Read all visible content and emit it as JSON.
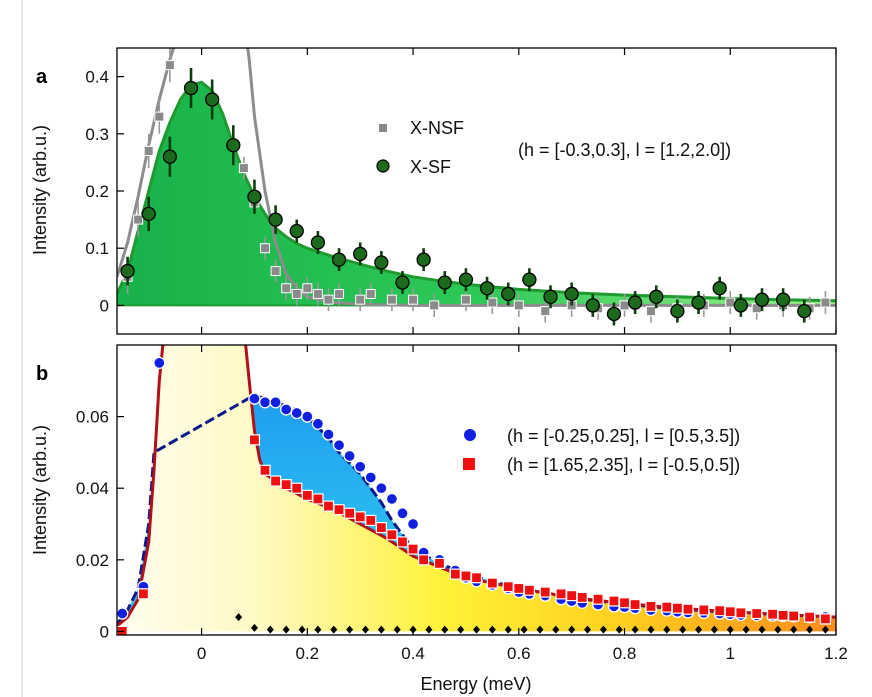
{
  "chart_data": [
    {
      "panel": "a",
      "type": "scatter",
      "ylabel": "Intensity (arb.u.)",
      "xlabel": "",
      "xlim": [
        -0.16,
        1.2
      ],
      "ylim": [
        -0.05,
        0.45
      ],
      "yticks": [
        0,
        0.1,
        0.2,
        0.3,
        0.4
      ],
      "ytick_labels": [
        "0",
        "0.1",
        "0.2",
        "0.3",
        "0.4"
      ],
      "xticks": [
        0,
        0.2,
        0.4,
        0.6,
        0.8,
        1.0,
        1.2
      ],
      "annotation": "(h = [-0.3,0.3], l = [1.2,2.0])",
      "colors": {
        "sf": "#1c6b1c",
        "sf_fit": "#1f9a2f",
        "sf_fill": "#22c04a",
        "nsf": "#888888"
      },
      "series": [
        {
          "name": "X-NSF",
          "marker": "square",
          "x": [
            -0.14,
            -0.12,
            -0.1,
            -0.08,
            -0.06,
            0.06,
            0.08,
            0.1,
            0.12,
            0.14,
            0.16,
            0.18,
            0.2,
            0.22,
            0.24,
            0.26,
            0.3,
            0.32,
            0.36,
            0.4,
            0.44,
            0.5,
            0.55,
            0.6,
            0.65,
            0.7,
            0.75,
            0.8,
            0.85,
            0.9,
            0.95,
            1.0,
            1.05,
            1.1,
            1.15,
            1.18
          ],
          "y": [
            0.05,
            0.15,
            0.27,
            0.33,
            0.42,
            0.28,
            0.24,
            0.18,
            0.1,
            0.06,
            0.03,
            0.02,
            0.03,
            0.02,
            0.01,
            0.02,
            0.01,
            0.02,
            0.01,
            0.01,
            0.0,
            0.01,
            0.005,
            0.0,
            -0.01,
            0.0,
            -0.005,
            0.0,
            -0.01,
            -0.005,
            0.0,
            0.005,
            -0.005,
            0.0,
            -0.005,
            0.005
          ],
          "err": [
            0.03,
            0.03,
            0.03,
            0.03,
            0.03,
            0.03,
            0.02,
            0.02,
            0.02,
            0.02,
            0.02,
            0.02,
            0.02,
            0.02,
            0.02,
            0.02,
            0.02,
            0.02,
            0.02,
            0.02,
            0.02,
            0.02,
            0.02,
            0.02,
            0.02,
            0.02,
            0.02,
            0.02,
            0.02,
            0.02,
            0.02,
            0.02,
            0.02,
            0.02,
            0.02,
            0.02
          ]
        },
        {
          "name": "X-SF",
          "marker": "circle",
          "x": [
            -0.14,
            -0.1,
            -0.06,
            -0.02,
            0.02,
            0.06,
            0.1,
            0.14,
            0.18,
            0.22,
            0.26,
            0.3,
            0.34,
            0.38,
            0.42,
            0.46,
            0.5,
            0.54,
            0.58,
            0.62,
            0.66,
            0.7,
            0.74,
            0.78,
            0.82,
            0.86,
            0.9,
            0.94,
            0.98,
            1.02,
            1.06,
            1.1,
            1.14
          ],
          "y": [
            0.06,
            0.16,
            0.26,
            0.38,
            0.36,
            0.28,
            0.19,
            0.15,
            0.13,
            0.11,
            0.08,
            0.09,
            0.075,
            0.04,
            0.08,
            0.04,
            0.045,
            0.03,
            0.02,
            0.045,
            0.015,
            0.02,
            0.0,
            -0.015,
            0.005,
            0.015,
            -0.01,
            0.005,
            0.03,
            0.0,
            0.01,
            0.01,
            -0.01
          ],
          "err": [
            0.025,
            0.03,
            0.035,
            0.035,
            0.035,
            0.035,
            0.03,
            0.025,
            0.02,
            0.02,
            0.02,
            0.02,
            0.02,
            0.02,
            0.02,
            0.02,
            0.02,
            0.02,
            0.02,
            0.02,
            0.02,
            0.02,
            0.02,
            0.02,
            0.02,
            0.02,
            0.02,
            0.02,
            0.02,
            0.02,
            0.02,
            0.02,
            0.02
          ]
        }
      ],
      "fits": [
        {
          "for": "X-SF",
          "x": [
            -0.16,
            -0.14,
            -0.12,
            -0.1,
            -0.08,
            -0.06,
            -0.04,
            -0.02,
            0.0,
            0.02,
            0.04,
            0.06,
            0.08,
            0.1,
            0.12,
            0.14,
            0.16,
            0.18,
            0.2,
            0.25,
            0.3,
            0.35,
            0.4,
            0.45,
            0.5,
            0.6,
            0.7,
            0.8,
            0.9,
            1.0,
            1.1,
            1.2
          ],
          "y": [
            0.02,
            0.06,
            0.13,
            0.2,
            0.27,
            0.32,
            0.36,
            0.385,
            0.39,
            0.375,
            0.335,
            0.28,
            0.23,
            0.19,
            0.16,
            0.135,
            0.12,
            0.108,
            0.1,
            0.085,
            0.072,
            0.06,
            0.05,
            0.043,
            0.037,
            0.028,
            0.022,
            0.018,
            0.015,
            0.012,
            0.01,
            0.008
          ]
        },
        {
          "for": "X-NSF",
          "x": [
            -0.16,
            -0.14,
            -0.12,
            -0.1,
            -0.08,
            -0.06,
            -0.05,
            -0.04,
            0.08,
            0.09,
            0.1,
            0.12,
            0.14,
            0.16,
            0.18,
            0.2,
            0.25,
            0.3,
            0.4,
            0.6,
            0.8,
            1.0,
            1.2
          ],
          "y": [
            0.05,
            0.11,
            0.19,
            0.28,
            0.36,
            0.43,
            0.46,
            0.5,
            0.5,
            0.43,
            0.33,
            0.2,
            0.11,
            0.055,
            0.03,
            0.015,
            0.005,
            0.002,
            0.0,
            0.0,
            0.0,
            0.0,
            0.0
          ]
        }
      ]
    },
    {
      "panel": "b",
      "type": "scatter",
      "ylabel": "Intensity (arb.u.)",
      "xlabel": "Energy (meV)",
      "xlim": [
        -0.16,
        1.2
      ],
      "ylim": [
        -0.001,
        0.08
      ],
      "yticks": [
        0,
        0.02,
        0.04,
        0.06
      ],
      "ytick_labels": [
        "0",
        "0.02",
        "0.04",
        "0.06"
      ],
      "xticks": [
        0,
        0.2,
        0.4,
        0.6,
        0.8,
        1.0,
        1.2
      ],
      "xtick_labels": [
        "0",
        "0.2",
        "0.4",
        "0.6",
        "0.8",
        "1",
        "1.2"
      ],
      "colors": {
        "blue": "#1020e0",
        "red": "#ee1010",
        "fit_blue": "#0a1a8a",
        "fit_red": "#b0101a",
        "diamond": "#000000"
      },
      "series": [
        {
          "name": "(h = [-0.25,0.25], l = [0.5,3.5])",
          "marker": "circle",
          "x": [
            -0.15,
            -0.11,
            -0.08,
            0.1,
            0.12,
            0.14,
            0.16,
            0.18,
            0.2,
            0.22,
            0.24,
            0.26,
            0.28,
            0.3,
            0.32,
            0.34,
            0.36,
            0.38,
            0.4,
            0.42,
            0.45,
            0.48,
            0.5,
            0.52,
            0.55,
            0.58,
            0.6,
            0.62,
            0.65,
            0.68,
            0.7,
            0.72,
            0.75,
            0.78,
            0.8,
            0.82,
            0.85,
            0.88,
            0.9,
            0.92,
            0.95,
            0.98,
            1.0,
            1.02,
            1.05,
            1.08,
            1.1,
            1.12,
            1.15,
            1.18
          ],
          "y": [
            0.005,
            0.0125,
            0.075,
            0.065,
            0.064,
            0.064,
            0.062,
            0.061,
            0.06,
            0.058,
            0.055,
            0.052,
            0.049,
            0.046,
            0.043,
            0.04,
            0.037,
            0.033,
            0.03,
            0.022,
            0.02,
            0.017,
            0.015,
            0.014,
            0.013,
            0.012,
            0.011,
            0.0105,
            0.01,
            0.009,
            0.0085,
            0.008,
            0.0075,
            0.007,
            0.0068,
            0.0065,
            0.006,
            0.0058,
            0.0055,
            0.0053,
            0.0052,
            0.005,
            0.0048,
            0.0046,
            0.0045,
            0.0044,
            0.0043,
            0.0042,
            0.004,
            0.004
          ]
        },
        {
          "name": "(h = [1.65,2.35], l = [-0.5,0.5])",
          "marker": "square",
          "x": [
            -0.15,
            -0.11,
            0.1,
            0.12,
            0.14,
            0.16,
            0.18,
            0.2,
            0.22,
            0.24,
            0.26,
            0.28,
            0.3,
            0.32,
            0.34,
            0.36,
            0.38,
            0.4,
            0.42,
            0.45,
            0.48,
            0.5,
            0.52,
            0.55,
            0.58,
            0.6,
            0.62,
            0.65,
            0.68,
            0.7,
            0.72,
            0.75,
            0.78,
            0.8,
            0.82,
            0.85,
            0.88,
            0.9,
            0.92,
            0.95,
            0.98,
            1.0,
            1.02,
            1.05,
            1.08,
            1.1,
            1.12,
            1.15,
            1.18
          ],
          "y": [
            0.0,
            0.0105,
            0.0535,
            0.045,
            0.042,
            0.041,
            0.04,
            0.038,
            0.037,
            0.035,
            0.034,
            0.033,
            0.032,
            0.031,
            0.029,
            0.027,
            0.025,
            0.023,
            0.02,
            0.019,
            0.016,
            0.0155,
            0.015,
            0.0135,
            0.0125,
            0.012,
            0.0115,
            0.011,
            0.0105,
            0.01,
            0.0095,
            0.009,
            0.0085,
            0.008,
            0.0075,
            0.007,
            0.0068,
            0.0065,
            0.0062,
            0.006,
            0.0058,
            0.0055,
            0.0052,
            0.005,
            0.0048,
            0.0045,
            0.0043,
            0.004,
            0.0035
          ]
        },
        {
          "name": "",
          "marker": "diamond",
          "x": [
            0.07,
            0.1,
            0.13,
            0.16,
            0.19,
            0.22,
            0.25,
            0.28,
            0.31,
            0.34,
            0.37,
            0.4,
            0.43,
            0.46,
            0.49,
            0.52,
            0.55,
            0.58,
            0.61,
            0.64,
            0.67,
            0.7,
            0.73,
            0.76,
            0.79,
            0.82,
            0.85,
            0.88,
            0.91,
            0.94,
            0.97,
            1.0,
            1.03,
            1.06,
            1.09,
            1.12,
            1.15,
            1.18
          ],
          "y": [
            0.004,
            0.001,
            0.0005,
            0.0005,
            0.0005,
            0.0005,
            0.0005,
            0.0005,
            0.0005,
            0.0005,
            0.0005,
            0.0005,
            0.0005,
            0.0005,
            0.0005,
            0.0005,
            0.0005,
            0.0005,
            0.0005,
            0.0005,
            0.0005,
            0.0005,
            0.0005,
            0.0005,
            0.0005,
            0.0005,
            0.0005,
            0.0005,
            0.0005,
            0.0005,
            0.0005,
            0.0005,
            0.0005,
            0.0005,
            0.0005,
            0.0005,
            0.0005,
            0.0005
          ]
        }
      ],
      "fits": [
        {
          "for": "red",
          "x": [
            -0.16,
            -0.14,
            -0.12,
            -0.1,
            -0.09,
            -0.08,
            -0.07,
            0.08,
            0.09,
            0.1,
            0.11,
            0.12,
            0.14,
            0.16,
            0.2,
            0.25,
            0.3,
            0.35,
            0.4,
            0.45,
            0.5,
            0.6,
            0.7,
            0.8,
            0.9,
            1.0,
            1.1,
            1.2
          ],
          "y": [
            0.0015,
            0.004,
            0.009,
            0.025,
            0.045,
            0.07,
            0.085,
            0.085,
            0.07,
            0.056,
            0.048,
            0.044,
            0.042,
            0.04,
            0.037,
            0.034,
            0.03,
            0.026,
            0.021,
            0.018,
            0.015,
            0.012,
            0.0095,
            0.0078,
            0.0065,
            0.0055,
            0.0047,
            0.004
          ]
        },
        {
          "for": "blue",
          "x": [
            -0.16,
            -0.14,
            -0.12,
            -0.1,
            -0.09,
            0.1,
            0.12,
            0.14,
            0.16,
            0.18,
            0.2,
            0.22,
            0.24,
            0.26,
            0.28,
            0.3,
            0.32,
            0.34,
            0.36,
            0.38,
            0.4,
            0.45,
            0.5,
            0.6,
            0.7,
            0.8,
            0.9,
            1.0,
            1.1,
            1.2
          ],
          "y": [
            0.002,
            0.006,
            0.012,
            0.03,
            0.05,
            0.066,
            0.065,
            0.064,
            0.063,
            0.062,
            0.06,
            0.057,
            0.054,
            0.05,
            0.047,
            0.044,
            0.04,
            0.036,
            0.031,
            0.027,
            0.023,
            0.019,
            0.016,
            0.012,
            0.0094,
            0.0076,
            0.0063,
            0.0053,
            0.0046,
            0.004
          ]
        }
      ]
    }
  ],
  "labels": {
    "panel_a": "a",
    "panel_b": "b",
    "legend_a": [
      "X-NSF",
      "X-SF"
    ],
    "annotation_a": "(h = [-0.3,0.3], l = [1.2,2.0])",
    "legend_b": [
      "(h = [-0.25,0.25], l = [0.5,3.5])",
      "(h = [1.65,2.35], l = [-0.5,0.5])"
    ],
    "ylabel": "Intensity (arb.u.)",
    "xlabel": "Energy (meV)"
  }
}
